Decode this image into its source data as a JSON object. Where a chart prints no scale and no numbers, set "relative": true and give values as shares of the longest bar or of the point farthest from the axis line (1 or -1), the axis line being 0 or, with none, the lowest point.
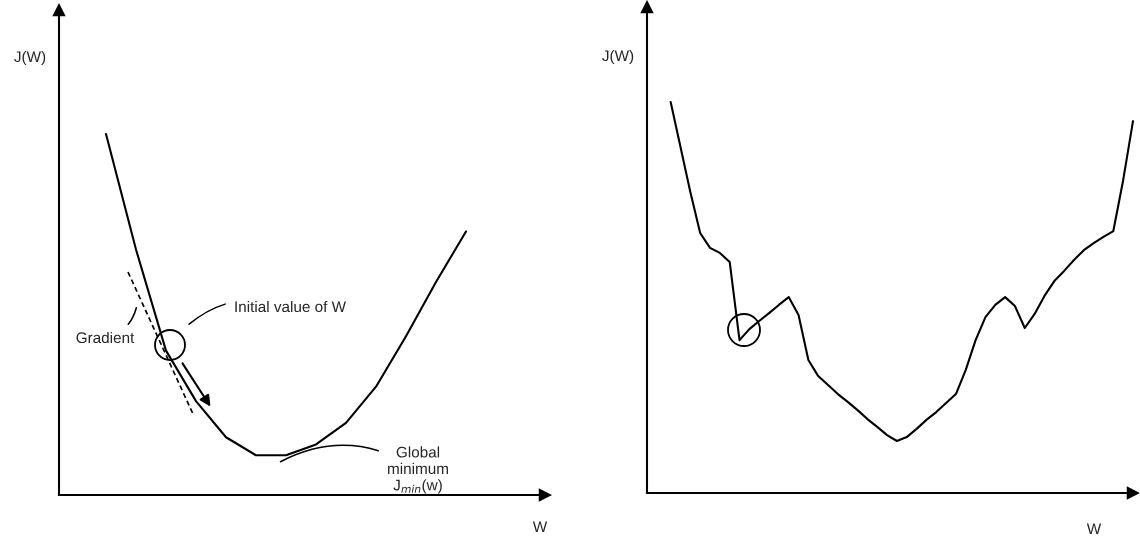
{
  "chart_data": [
    {
      "type": "line",
      "xlabel": "W",
      "ylabel": "J(W)",
      "relative": true,
      "categories": [
        null,
        null,
        null,
        null,
        null,
        null,
        null,
        null,
        null,
        null,
        null,
        null,
        null
      ],
      "series": [
        {
          "color": "#000000",
          "values": [
            1.0,
            0.68,
            0.4,
            0.26,
            0.16,
            0.11,
            0.11,
            0.14,
            0.2,
            0.3,
            0.44,
            0.59,
            0.73
          ]
        }
      ],
      "annotations": [
        "Initial value of W",
        "Gradient",
        "Global\nminimum\nJ$_{min}$(w)"
      ]
    },
    {
      "type": "line",
      "xlabel": "W",
      "ylabel": "J(W)",
      "relative": true,
      "categories": [
        null,
        null,
        null,
        null,
        null,
        null,
        null,
        null,
        null,
        null,
        null,
        null,
        null,
        null,
        null,
        null,
        null,
        null,
        null,
        null,
        null,
        null,
        null,
        null,
        null,
        null,
        null,
        null,
        null,
        null,
        null,
        null,
        null,
        null,
        null,
        null,
        null,
        null,
        null,
        null,
        null,
        null,
        null,
        null,
        null,
        null,
        null,
        null
      ],
      "series": [
        {
          "color": "#000000",
          "values": [
            1.0,
            0.885,
            0.77,
            0.665,
            0.627,
            0.614,
            0.591,
            0.391,
            0.419,
            0.44,
            0.46,
            0.481,
            0.501,
            0.455,
            0.34,
            0.299,
            0.276,
            0.253,
            0.233,
            0.212,
            0.189,
            0.169,
            0.148,
            0.133,
            0.143,
            0.164,
            0.187,
            0.207,
            0.23,
            0.253,
            0.315,
            0.391,
            0.45,
            0.481,
            0.501,
            0.478,
            0.422,
            0.458,
            0.504,
            0.542,
            0.568,
            0.596,
            0.621,
            0.639,
            0.655,
            0.67,
            0.8,
            0.951
          ]
        }
      ]
    }
  ]
}
